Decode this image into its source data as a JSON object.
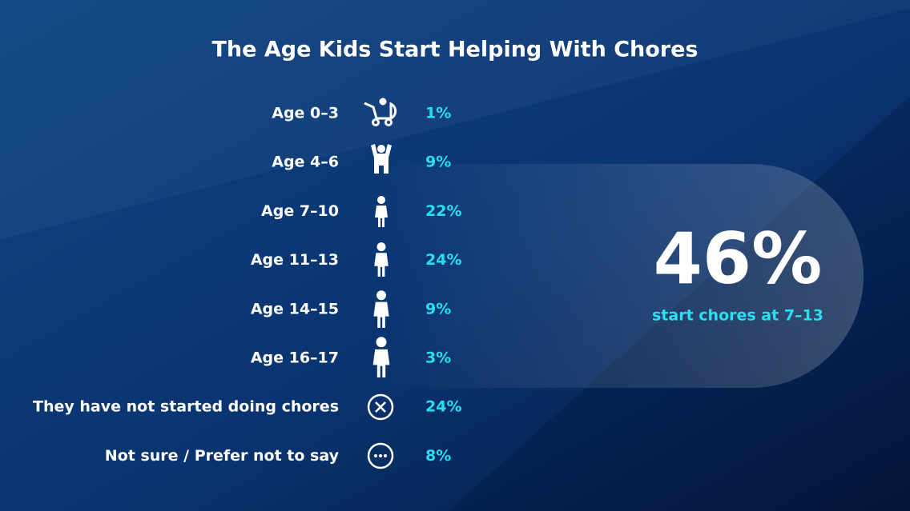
{
  "title": "The Age Kids Start Helping With Chores",
  "rows": [
    {
      "label": "Age 0–3",
      "value": "1%"
    },
    {
      "label": "Age 4–6",
      "value": "9%"
    },
    {
      "label": "Age 7–10",
      "value": "22%"
    },
    {
      "label": "Age 11–13",
      "value": "24%"
    },
    {
      "label": "Age 14–15",
      "value": "9%"
    },
    {
      "label": "Age 16–17",
      "value": "3%"
    },
    {
      "label": "They have not started doing chores",
      "value": "24%"
    },
    {
      "label": "Not sure / Prefer not to say",
      "value": "8%"
    }
  ],
  "highlight": {
    "value": "46%",
    "caption": "start chores at 7–13"
  }
}
